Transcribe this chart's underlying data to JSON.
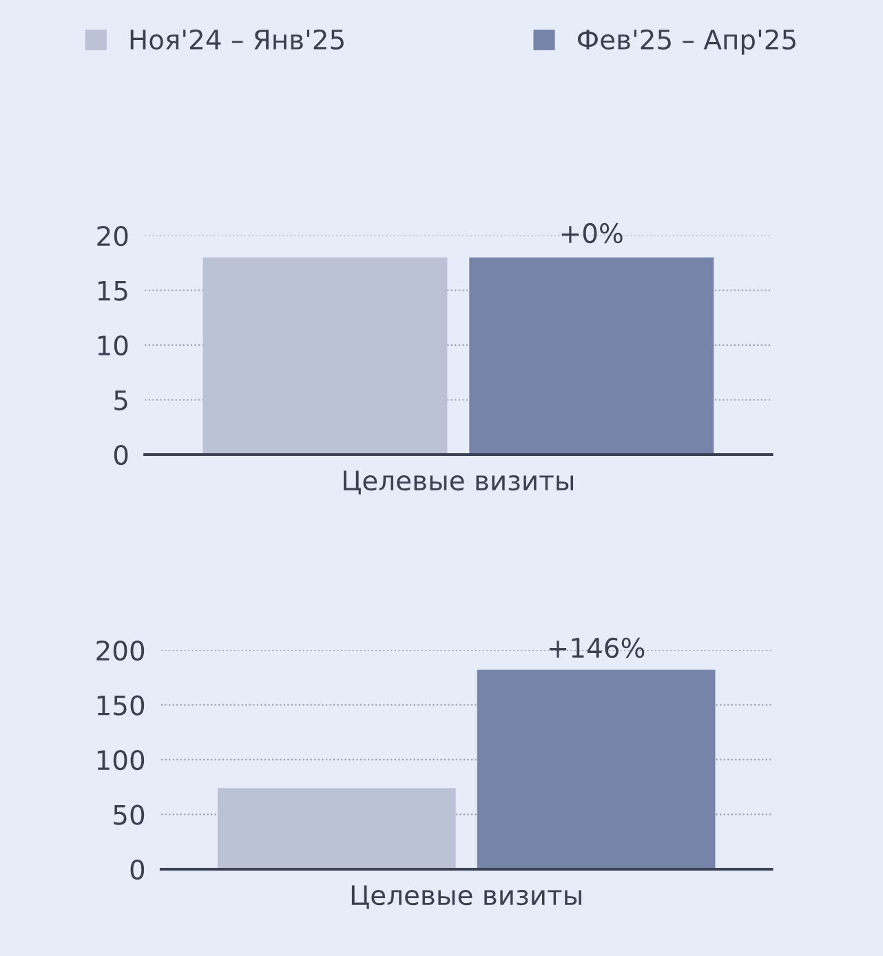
{
  "chart_data": [
    {
      "type": "bar",
      "categories": [
        "Целевые визиты"
      ],
      "series": [
        {
          "name": "Ноя'24 – Янв'25",
          "color": "#bcc2d5",
          "values": [
            18
          ]
        },
        {
          "name": "Фев'25 – Апр'25",
          "color": "#7584a8",
          "values": [
            18
          ]
        }
      ],
      "ylim": [
        0,
        20
      ],
      "yticks": [
        0,
        5,
        10,
        15,
        20
      ],
      "grid": "y",
      "legend": "top",
      "annotations": [
        "+0%"
      ]
    },
    {
      "type": "bar",
      "categories": [
        "Целевые визиты"
      ],
      "series": [
        {
          "color": "#bcc2d5",
          "values": [
            74
          ]
        },
        {
          "color": "#7584a8",
          "values": [
            182
          ]
        }
      ],
      "ylim": [
        0,
        200
      ],
      "yticks": [
        0,
        50,
        100,
        150,
        200
      ],
      "grid": "y",
      "annotations": [
        "+146%"
      ]
    }
  ]
}
